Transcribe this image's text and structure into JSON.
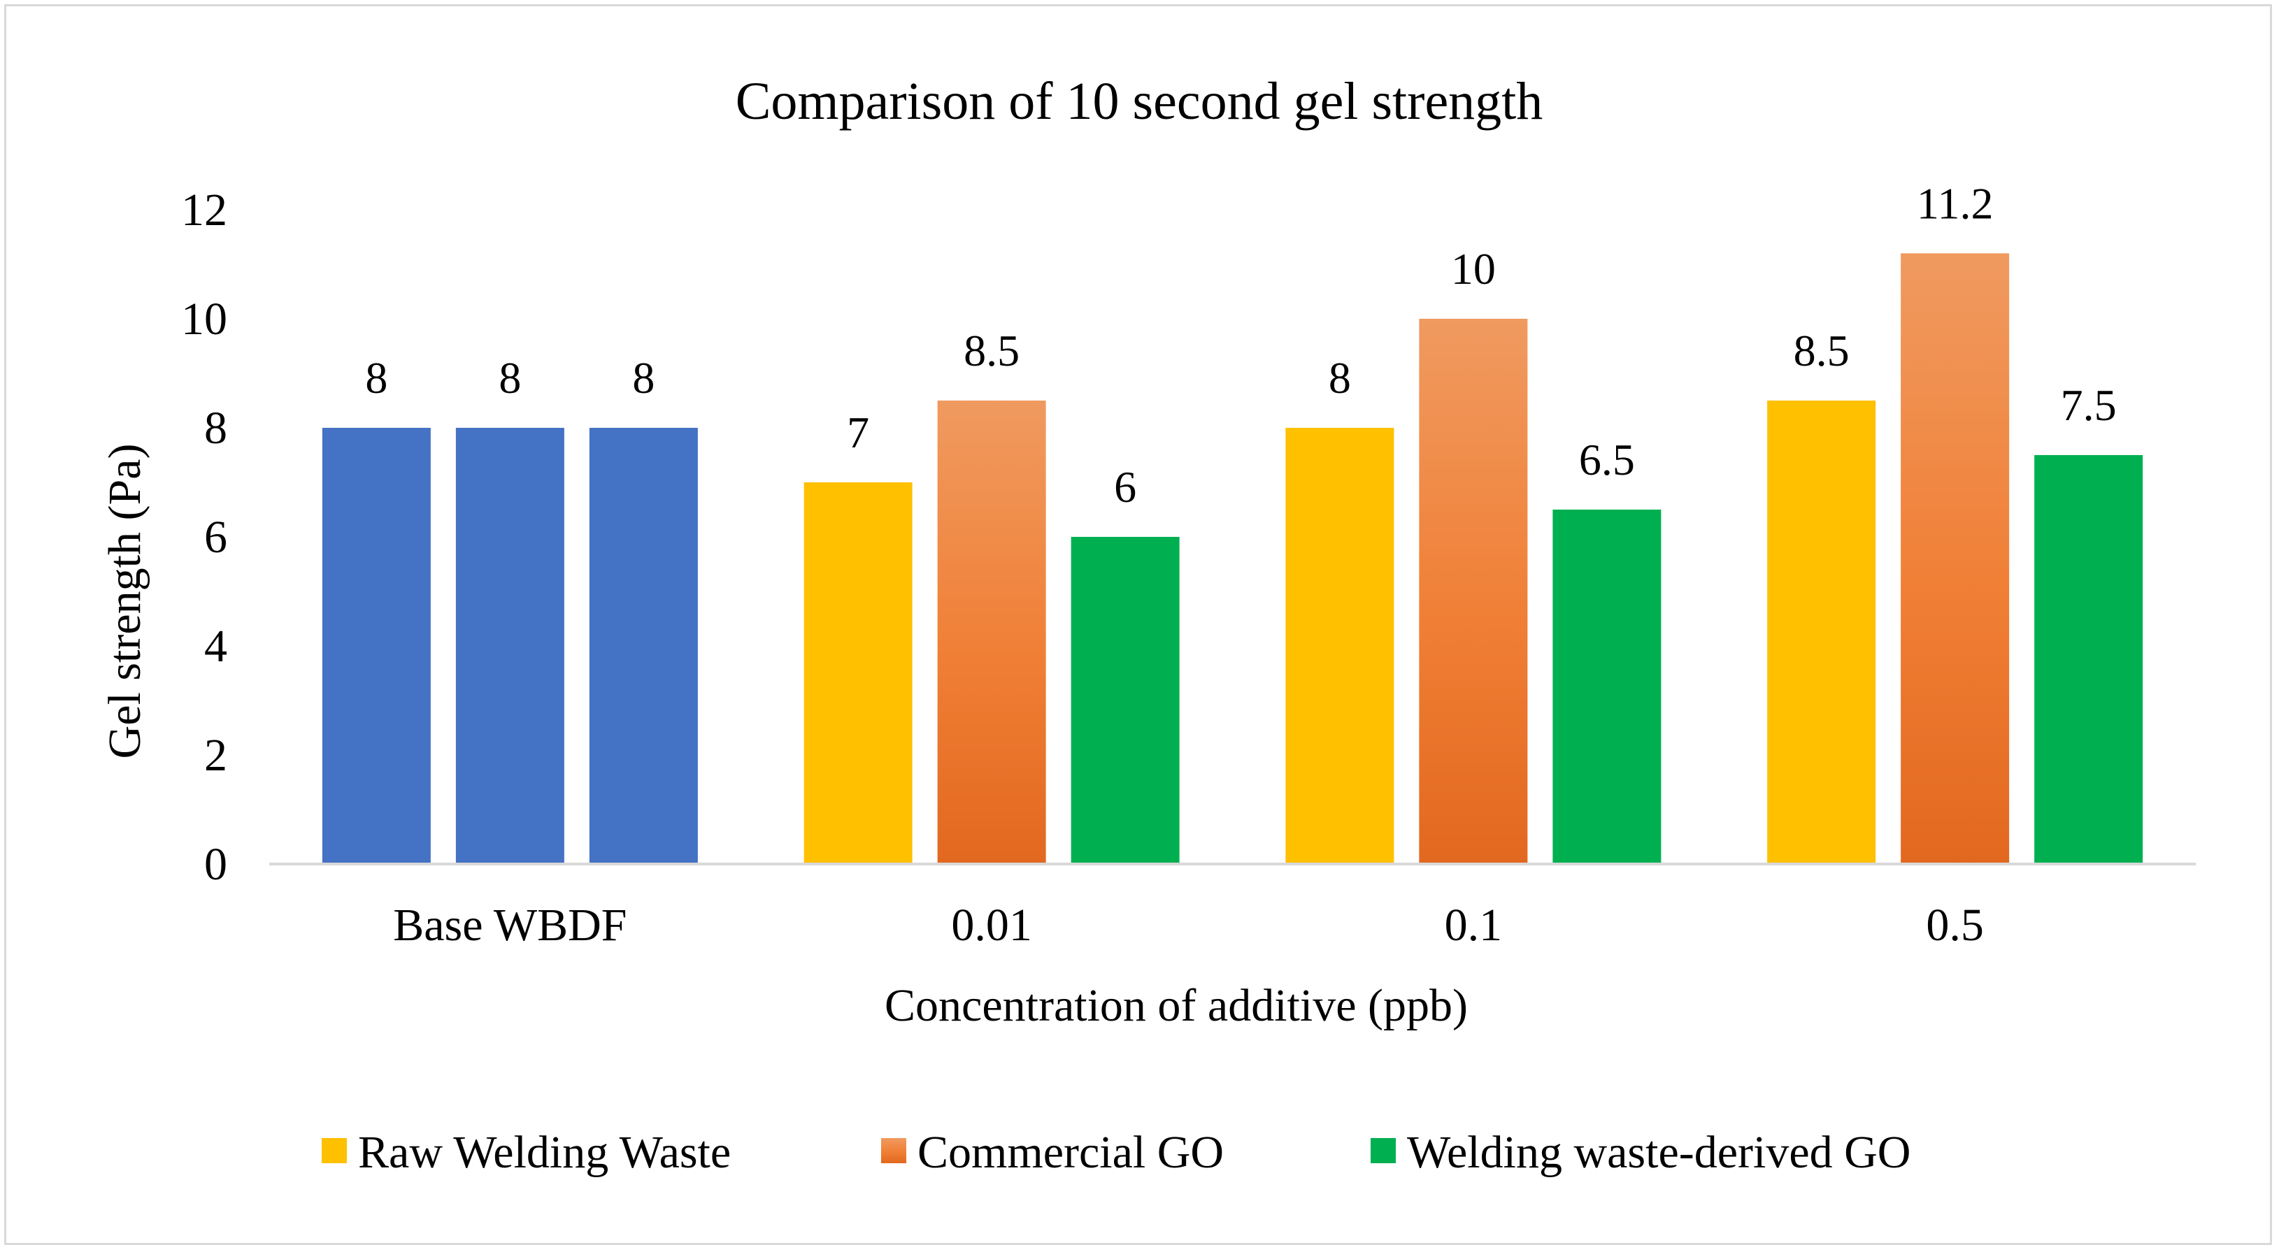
{
  "chart_data": {
    "type": "bar",
    "title": "Comparison of 10 second gel strength",
    "xlabel": "Concentration of additive (ppb)",
    "ylabel": "Gel strength (Pa)",
    "ylim": [
      0,
      12
    ],
    "yticks": [
      "0",
      "2",
      "4",
      "6",
      "8",
      "10",
      "12"
    ],
    "grid": false,
    "legend_position": "bottom",
    "categories": [
      "Base WBDF",
      "0.01",
      "0.1",
      "0.5"
    ],
    "base_category_color": "#4472c4",
    "series": [
      {
        "name": "Raw Welding Waste",
        "values": [
          8,
          7,
          8,
          8.5
        ],
        "color": "#ffc000"
      },
      {
        "name": "Commercial GO",
        "values": [
          8,
          8.5,
          10,
          11.2
        ],
        "color": "#ed7d31"
      },
      {
        "name": "Welding waste-derived GO",
        "values": [
          8,
          6,
          6.5,
          7.5
        ],
        "color": "#00b050"
      }
    ],
    "data_labels": [
      [
        "8",
        "7",
        "8",
        "8.5"
      ],
      [
        "8",
        "8.5",
        "10",
        "11.2"
      ],
      [
        "8",
        "6",
        "6.5",
        "7.5"
      ]
    ]
  }
}
